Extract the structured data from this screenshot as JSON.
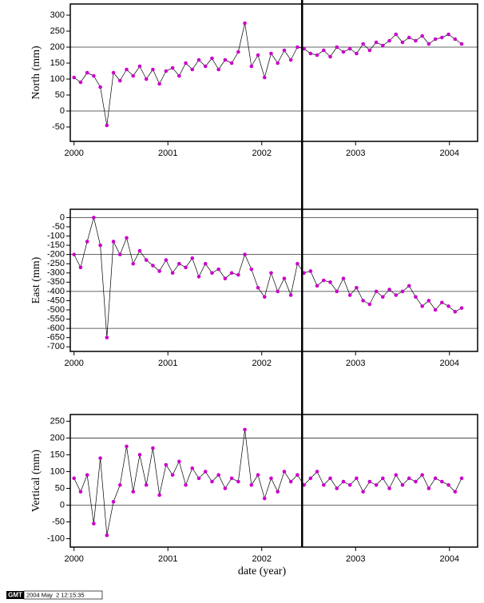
{
  "chart_data": [
    {
      "type": "line",
      "ylabel": "North (mm)",
      "x": [
        2000.0,
        2000.07,
        2000.14,
        2000.21,
        2000.28,
        2000.35,
        2000.42,
        2000.49,
        2000.56,
        2000.63,
        2000.7,
        2000.77,
        2000.84,
        2000.91,
        2000.98,
        2001.05,
        2001.12,
        2001.19,
        2001.26,
        2001.33,
        2001.4,
        2001.47,
        2001.54,
        2001.61,
        2001.68,
        2001.75,
        2001.82,
        2001.89,
        2001.96,
        2002.03,
        2002.1,
        2002.17,
        2002.24,
        2002.31,
        2002.38,
        2002.45,
        2002.52,
        2002.59,
        2002.66,
        2002.73,
        2002.8,
        2002.87,
        2002.94,
        2003.01,
        2003.08,
        2003.15,
        2003.22,
        2003.29,
        2003.36,
        2003.43,
        2003.5,
        2003.57,
        2003.64,
        2003.71,
        2003.78,
        2003.85,
        2003.92,
        2003.99,
        2004.06,
        2004.13
      ],
      "series": [
        {
          "color": "#cc00cc",
          "values": [
            105,
            90,
            120,
            110,
            75,
            -45,
            120,
            95,
            130,
            110,
            140,
            100,
            130,
            85,
            125,
            135,
            110,
            150,
            130,
            160,
            140,
            165,
            130,
            160,
            150,
            185,
            275,
            140,
            175,
            105,
            180,
            150,
            190,
            160,
            200,
            195,
            180,
            175,
            190,
            170,
            200,
            185,
            195,
            180,
            210,
            190,
            215,
            205,
            220,
            240,
            215,
            230,
            220,
            235,
            210,
            225,
            230,
            240,
            225,
            210
          ]
        }
      ],
      "xlim": [
        1999.96,
        2004.3
      ],
      "xticks": [
        2000,
        2001,
        2002,
        2003,
        2004
      ],
      "ylim": [
        -95,
        335
      ],
      "yticks": [
        300,
        250,
        200,
        150,
        100,
        50,
        0,
        -50
      ],
      "hlines": [
        0,
        200
      ],
      "vline_x": 2002.43
    },
    {
      "type": "line",
      "ylabel": "East (mm)",
      "x": [
        2000.0,
        2000.07,
        2000.14,
        2000.21,
        2000.28,
        2000.35,
        2000.42,
        2000.49,
        2000.56,
        2000.63,
        2000.7,
        2000.77,
        2000.84,
        2000.91,
        2000.98,
        2001.05,
        2001.12,
        2001.19,
        2001.26,
        2001.33,
        2001.4,
        2001.47,
        2001.54,
        2001.61,
        2001.68,
        2001.75,
        2001.82,
        2001.89,
        2001.96,
        2002.03,
        2002.1,
        2002.17,
        2002.24,
        2002.31,
        2002.38,
        2002.45,
        2002.52,
        2002.59,
        2002.66,
        2002.73,
        2002.8,
        2002.87,
        2002.94,
        2003.01,
        2003.08,
        2003.15,
        2003.22,
        2003.29,
        2003.36,
        2003.43,
        2003.5,
        2003.57,
        2003.64,
        2003.71,
        2003.78,
        2003.85,
        2003.92,
        2003.99,
        2004.06,
        2004.13
      ],
      "series": [
        {
          "color": "#cc00cc",
          "values": [
            -200,
            -270,
            -130,
            0,
            -150,
            -650,
            -130,
            -200,
            -110,
            -250,
            -180,
            -230,
            -260,
            -290,
            -230,
            -300,
            -250,
            -270,
            -220,
            -320,
            -250,
            -300,
            -280,
            -330,
            -300,
            -310,
            -200,
            -280,
            -380,
            -430,
            -300,
            -400,
            -330,
            -420,
            -250,
            -300,
            -290,
            -370,
            -340,
            -350,
            -400,
            -330,
            -420,
            -380,
            -450,
            -470,
            -400,
            -430,
            -390,
            -420,
            -400,
            -370,
            -430,
            -480,
            -450,
            -500,
            -460,
            -480,
            -510,
            -490
          ]
        }
      ],
      "xlim": [
        1999.96,
        2004.3
      ],
      "xticks": [
        2000,
        2001,
        2002,
        2003,
        2004
      ],
      "ylim": [
        -725,
        45
      ],
      "yticks": [
        0,
        -50,
        -100,
        -150,
        -200,
        -250,
        -300,
        -350,
        -400,
        -450,
        -500,
        -550,
        -600,
        -650,
        -700
      ],
      "hlines": [
        0,
        -200,
        -400,
        -600
      ]
    },
    {
      "type": "line",
      "ylabel": "Vertical (mm)",
      "xlabel": "date (year)",
      "x": [
        2000.0,
        2000.07,
        2000.14,
        2000.21,
        2000.28,
        2000.35,
        2000.42,
        2000.49,
        2000.56,
        2000.63,
        2000.7,
        2000.77,
        2000.84,
        2000.91,
        2000.98,
        2001.05,
        2001.12,
        2001.19,
        2001.26,
        2001.33,
        2001.4,
        2001.47,
        2001.54,
        2001.61,
        2001.68,
        2001.75,
        2001.82,
        2001.89,
        2001.96,
        2002.03,
        2002.1,
        2002.17,
        2002.24,
        2002.31,
        2002.38,
        2002.45,
        2002.52,
        2002.59,
        2002.66,
        2002.73,
        2002.8,
        2002.87,
        2002.94,
        2003.01,
        2003.08,
        2003.15,
        2003.22,
        2003.29,
        2003.36,
        2003.43,
        2003.5,
        2003.57,
        2003.64,
        2003.71,
        2003.78,
        2003.85,
        2003.92,
        2003.99,
        2004.06,
        2004.13
      ],
      "series": [
        {
          "color": "#cc00cc",
          "values": [
            80,
            40,
            90,
            -55,
            140,
            -90,
            10,
            60,
            175,
            40,
            150,
            60,
            170,
            30,
            120,
            90,
            130,
            60,
            110,
            80,
            100,
            70,
            90,
            50,
            80,
            70,
            225,
            60,
            90,
            20,
            80,
            40,
            100,
            70,
            90,
            60,
            80,
            100,
            60,
            80,
            50,
            70,
            60,
            80,
            40,
            70,
            60,
            80,
            50,
            90,
            60,
            80,
            70,
            90,
            50,
            80,
            70,
            60,
            40,
            80
          ]
        }
      ],
      "xlim": [
        1999.96,
        2004.3
      ],
      "xticks": [
        2000,
        2001,
        2002,
        2003,
        2004
      ],
      "ylim": [
        -125,
        270
      ],
      "yticks": [
        250,
        200,
        150,
        100,
        50,
        0,
        -50,
        -100
      ],
      "hlines": [
        0,
        200
      ],
      "stamp_logo": "GMT",
      "stamp": "2004 May  2 12:15:35"
    }
  ]
}
